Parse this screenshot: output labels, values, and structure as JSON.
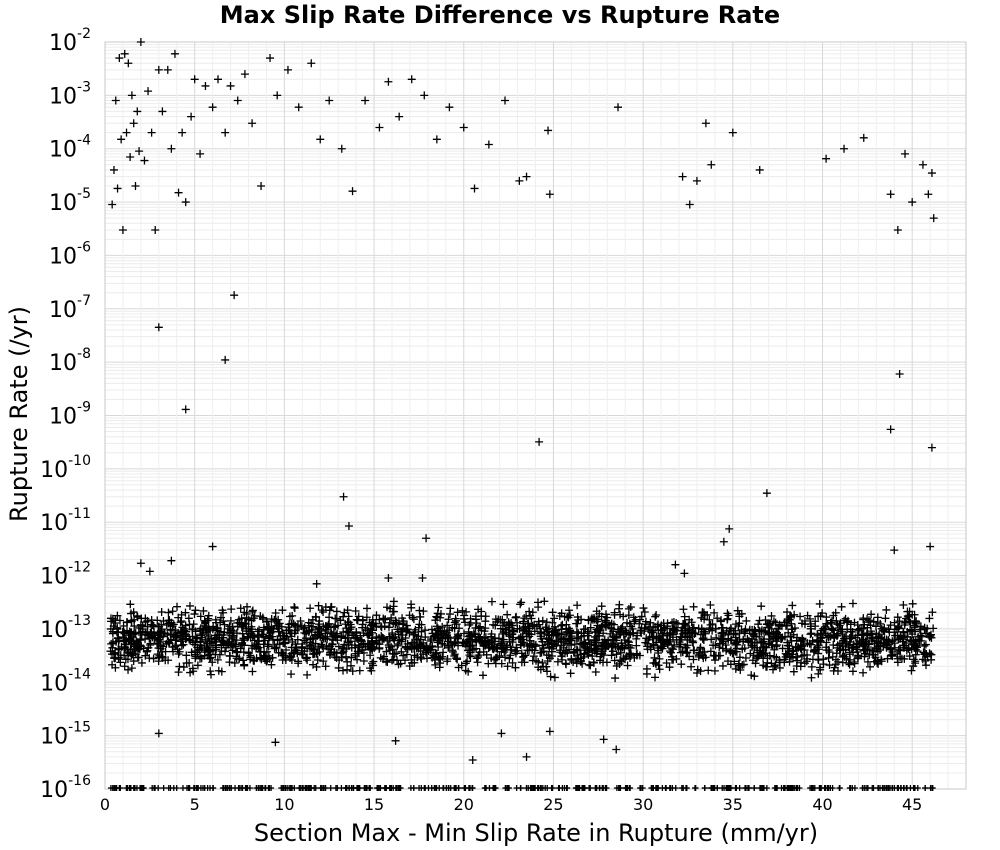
{
  "chart_data": {
    "type": "scatter",
    "title": "Max Slip Rate Difference vs Rupture Rate",
    "xlabel": "Section Max - Min Slip Rate in Rupture (mm/yr)",
    "ylabel": "Rupture Rate (/yr)",
    "xlim": [
      0,
      48
    ],
    "ylim": [
      1e-16,
      0.01
    ],
    "yscale": "log",
    "grid": true,
    "marker": "+",
    "marker_color": "#000000",
    "x_ticks": [
      "0",
      "5",
      "10",
      "15",
      "20",
      "25",
      "30",
      "35",
      "40",
      "45"
    ],
    "y_ticks": [
      {
        "base": "10",
        "exp": "-16",
        "value": 1e-16
      },
      {
        "base": "10",
        "exp": "-15",
        "value": 1e-15
      },
      {
        "base": "10",
        "exp": "-14",
        "value": 1e-14
      },
      {
        "base": "10",
        "exp": "-13",
        "value": 1e-13
      },
      {
        "base": "10",
        "exp": "-12",
        "value": 1e-12
      },
      {
        "base": "10",
        "exp": "-11",
        "value": 1e-11
      },
      {
        "base": "10",
        "exp": "-10",
        "value": 1e-10
      },
      {
        "base": "10",
        "exp": "-9",
        "value": 1e-09
      },
      {
        "base": "10",
        "exp": "-8",
        "value": 1e-08
      },
      {
        "base": "10",
        "exp": "-7",
        "value": 1e-07
      },
      {
        "base": "10",
        "exp": "-6",
        "value": 1e-06
      },
      {
        "base": "10",
        "exp": "-5",
        "value": 1e-05
      },
      {
        "base": "10",
        "exp": "-4",
        "value": 0.0001
      },
      {
        "base": "10",
        "exp": "-3",
        "value": 0.001
      },
      {
        "base": "10",
        "exp": "-2",
        "value": 0.01
      }
    ],
    "points": [
      [
        0.4,
        9e-06
      ],
      [
        0.5,
        4e-05
      ],
      [
        0.6,
        0.0008
      ],
      [
        0.7,
        1.8e-05
      ],
      [
        0.8,
        0.005
      ],
      [
        0.9,
        0.00015
      ],
      [
        1.0,
        3e-06
      ],
      [
        1.1,
        0.006
      ],
      [
        1.2,
        0.0002
      ],
      [
        1.3,
        0.004
      ],
      [
        1.4,
        7e-05
      ],
      [
        1.5,
        0.001
      ],
      [
        1.6,
        0.0003
      ],
      [
        1.7,
        2e-05
      ],
      [
        1.8,
        0.0005
      ],
      [
        1.9,
        9e-05
      ],
      [
        2.0,
        0.01
      ],
      [
        2.2,
        6e-05
      ],
      [
        2.4,
        0.0012
      ],
      [
        2.6,
        0.0002
      ],
      [
        2.8,
        3e-06
      ],
      [
        3.0,
        0.003
      ],
      [
        3.2,
        0.0005
      ],
      [
        3.5,
        0.003
      ],
      [
        3.7,
        0.0001
      ],
      [
        3.9,
        0.006
      ],
      [
        4.1,
        1.5e-05
      ],
      [
        4.3,
        0.0002
      ],
      [
        4.5,
        1e-05
      ],
      [
        4.8,
        0.0004
      ],
      [
        5.0,
        0.002
      ],
      [
        5.3,
        8e-05
      ],
      [
        5.6,
        0.0015
      ],
      [
        6.0,
        0.0006
      ],
      [
        6.3,
        0.002
      ],
      [
        6.7,
        0.0002
      ],
      [
        7.0,
        0.0015
      ],
      [
        7.4,
        0.0008
      ],
      [
        7.8,
        0.0025
      ],
      [
        8.2,
        0.0003
      ],
      [
        8.7,
        2e-05
      ],
      [
        9.2,
        0.005
      ],
      [
        9.6,
        0.001
      ],
      [
        10.2,
        0.003
      ],
      [
        10.8,
        0.0006
      ],
      [
        11.5,
        0.004
      ],
      [
        12.0,
        0.00015
      ],
      [
        12.5,
        0.0008
      ],
      [
        13.2,
        0.0001
      ],
      [
        13.8,
        1.6e-05
      ],
      [
        14.5,
        0.0008
      ],
      [
        15.3,
        0.00025
      ],
      [
        15.8,
        0.0018
      ],
      [
        16.4,
        0.0004
      ],
      [
        17.1,
        0.002
      ],
      [
        17.8,
        0.001
      ],
      [
        18.5,
        0.00015
      ],
      [
        19.2,
        0.0006
      ],
      [
        20.0,
        0.00025
      ],
      [
        20.6,
        1.8e-05
      ],
      [
        21.4,
        0.00012
      ],
      [
        22.3,
        0.0008
      ],
      [
        23.1,
        2.5e-05
      ],
      [
        23.5,
        3e-05
      ],
      [
        24.7,
        0.00022
      ],
      [
        24.8,
        1.4e-05
      ],
      [
        28.6,
        0.0006
      ],
      [
        32.2,
        3e-05
      ],
      [
        32.6,
        9e-06
      ],
      [
        33.0,
        2.5e-05
      ],
      [
        33.5,
        0.0003
      ],
      [
        33.8,
        5e-05
      ],
      [
        35.0,
        0.0002
      ],
      [
        36.5,
        4e-05
      ],
      [
        40.2,
        6.5e-05
      ],
      [
        41.2,
        0.0001
      ],
      [
        42.3,
        0.00016
      ],
      [
        43.8,
        1.4e-05
      ],
      [
        44.2,
        3e-06
      ],
      [
        44.6,
        8e-05
      ],
      [
        45.0,
        1e-05
      ],
      [
        45.6,
        5e-05
      ],
      [
        45.9,
        1.4e-05
      ],
      [
        46.1,
        3.5e-05
      ],
      [
        46.2,
        5e-06
      ],
      [
        3.0,
        4.5e-08
      ],
      [
        7.2,
        1.8e-07
      ],
      [
        6.7,
        1.1e-08
      ],
      [
        4.5,
        1.3e-09
      ],
      [
        24.2,
        3.2e-10
      ],
      [
        43.8,
        5.5e-10
      ],
      [
        44.3,
        6e-09
      ],
      [
        46.1,
        2.5e-10
      ],
      [
        13.3,
        3e-11
      ],
      [
        13.6,
        8.5e-12
      ],
      [
        17.9,
        5e-12
      ],
      [
        36.9,
        3.5e-11
      ],
      [
        34.8,
        7.5e-12
      ],
      [
        34.5,
        4.3e-12
      ],
      [
        44.0,
        3e-12
      ],
      [
        46.0,
        3.5e-12
      ],
      [
        6.0,
        3.5e-12
      ],
      [
        2.0,
        1.7e-12
      ],
      [
        3.7,
        1.9e-12
      ],
      [
        2.5,
        1.2e-12
      ],
      [
        31.8,
        1.6e-12
      ],
      [
        32.3,
        1.1e-12
      ],
      [
        17.7,
        9e-13
      ],
      [
        15.8,
        9e-13
      ],
      [
        11.8,
        7e-13
      ],
      [
        7.1,
        7.5e-14
      ],
      [
        1.5,
        7e-14
      ],
      [
        1.6,
        2.5e-14
      ],
      [
        3.0,
        1.1e-15
      ],
      [
        5.3,
        3e-14
      ],
      [
        9.5,
        7.5e-16
      ],
      [
        10.4,
        4.5e-14
      ],
      [
        12.3,
        2e-14
      ],
      [
        13.6,
        5.5e-14
      ],
      [
        16.0,
        2.6e-14
      ],
      [
        16.2,
        8e-16
      ],
      [
        17.9,
        4.5e-14
      ],
      [
        20.5,
        3.5e-16
      ],
      [
        22.1,
        1.1e-15
      ],
      [
        23.5,
        4e-16
      ],
      [
        24.8,
        1.2e-15
      ],
      [
        27.8,
        8.5e-16
      ],
      [
        28.5,
        5.5e-16
      ],
      [
        29.2,
        5e-14
      ],
      [
        40.3,
        7.5e-14
      ],
      [
        40.6,
        5e-14
      ],
      [
        42.0,
        3.2e-14
      ],
      [
        43.1,
        2.2e-14
      ],
      [
        44.9,
        1.3e-13
      ],
      [
        36.2,
        1.3e-14
      ],
      [
        45.0,
        8e-14
      ]
    ]
  }
}
